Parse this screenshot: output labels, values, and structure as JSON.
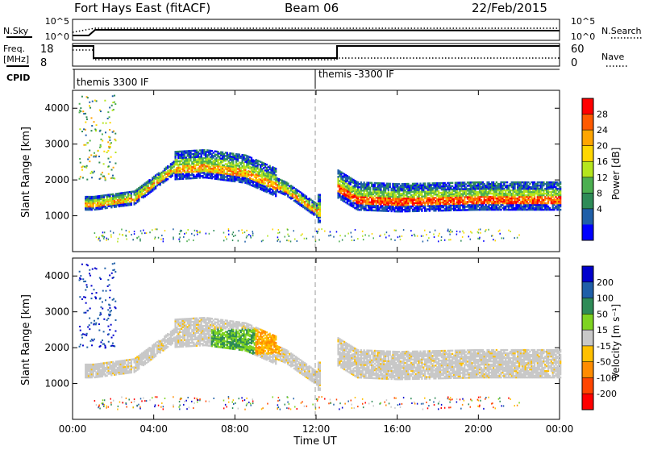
{
  "header": {
    "site": "Fort Hays East (fitACF)",
    "beam": "Beam 06",
    "date": "22/Feb/2015"
  },
  "top_panels": {
    "nsky_label": "N.Sky",
    "nsky_ticks": [
      "10^5",
      "10^0"
    ],
    "nsearch_label": "N.Search",
    "nsearch_ticks": [
      "10^5",
      "10^0"
    ],
    "freq_label": "Freq.",
    "freq_unit": "[MHz]",
    "freq_ticks": [
      "18",
      "8"
    ],
    "nave_label": "Nave",
    "nave_ticks": [
      "60",
      "0"
    ],
    "cpid_label": "CPID",
    "cpid_segments": [
      "themis 3300 IF",
      "themis -3300 IF"
    ]
  },
  "power_colorbar": {
    "label": "Power [dB]",
    "ticks": [
      "28",
      "24",
      "20",
      "16",
      "12",
      "8",
      "4"
    ],
    "colors": [
      "#ff0000",
      "#ff5a00",
      "#ffa500",
      "#ffd700",
      "#b5e61d",
      "#4caf50",
      "#2e8b57",
      "#1f5fa8",
      "#0000ff"
    ]
  },
  "velocity_colorbar": {
    "label": "Velocity [m s⁻¹]",
    "ticks": [
      "200",
      "100",
      "50",
      "15",
      "-15",
      "-50",
      "-100",
      "-200"
    ],
    "colors": [
      "#0000cc",
      "#1f5fa8",
      "#2e8b57",
      "#7ed321",
      "#c8c8c8",
      "#ffc000",
      "#ff8c00",
      "#ff4500",
      "#ff0000"
    ]
  },
  "chart_data": [
    {
      "type": "heatmap",
      "panel": "power",
      "ylabel": "Slant Range [km]",
      "y_ticks": [
        "4000",
        "3000",
        "2000",
        "1000"
      ],
      "ylim": [
        0,
        4500
      ],
      "xlim": [
        0,
        24
      ],
      "features": [
        {
          "desc": "main band",
          "x": [
            1,
            3,
            5,
            6.5,
            8.5,
            10.5,
            12
          ],
          "range_km": [
            1300,
            1450,
            2300,
            2350,
            2200,
            1700,
            1100
          ]
        },
        {
          "desc": "after gap",
          "x": [
            13,
            14,
            16,
            20,
            24
          ],
          "range_km": [
            1800,
            1450,
            1400,
            1450,
            1450
          ]
        }
      ]
    },
    {
      "type": "heatmap",
      "panel": "velocity",
      "ylabel": "Slant Range [km]",
      "y_ticks": [
        "4000",
        "3000",
        "2000",
        "1000"
      ],
      "ylim": [
        0,
        4500
      ],
      "xlim": [
        0,
        24
      ],
      "x_ticks": [
        "00:00",
        "04:00",
        "08:00",
        "12:00",
        "16:00",
        "20:00",
        "00:00"
      ],
      "xlabel": "Time UT"
    }
  ]
}
